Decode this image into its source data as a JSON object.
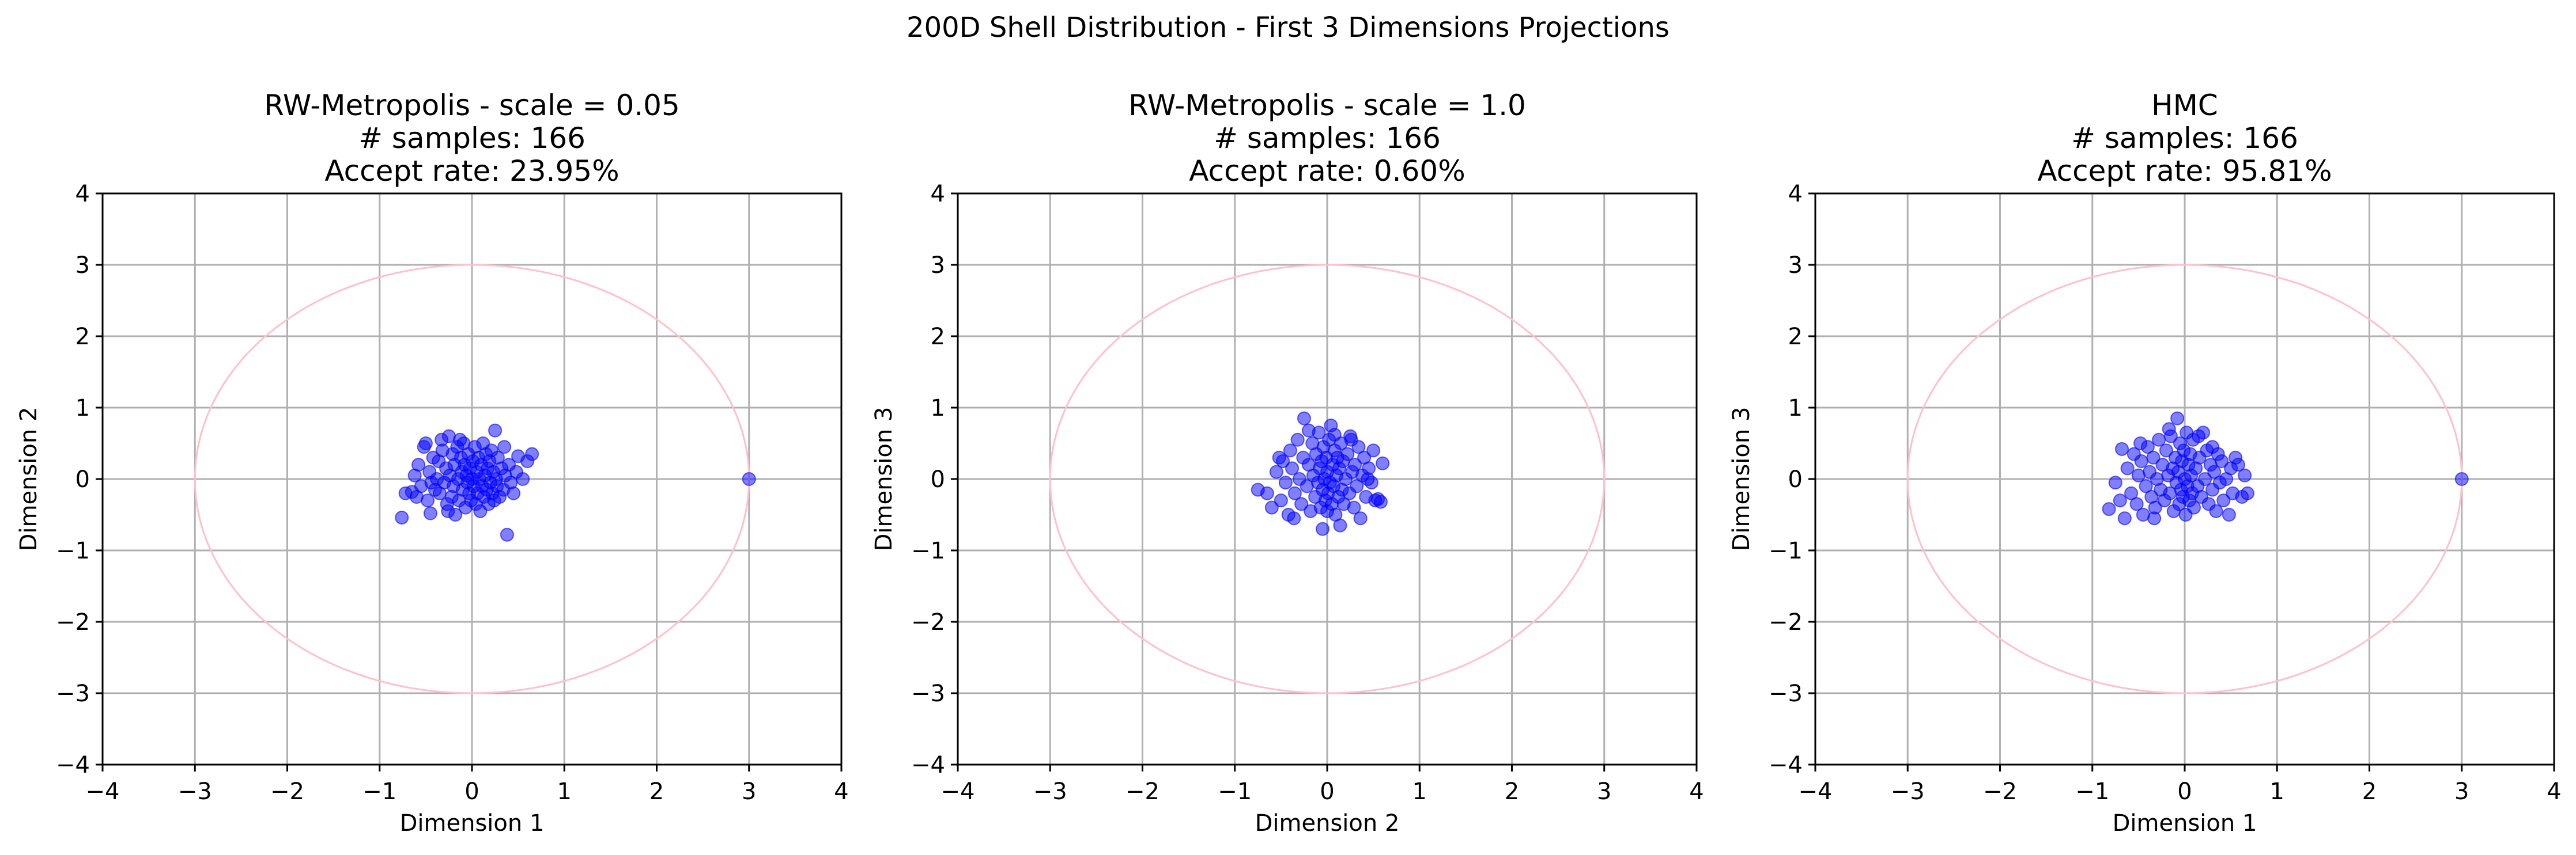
{
  "figure": {
    "suptitle": "200D Shell Distribution - First 3 Dimensions Projections"
  },
  "chart_data": [
    {
      "type": "scatter",
      "title_lines": [
        "RW-Metropolis - scale = 0.05",
        "# samples: 166",
        "Accept rate: 23.95%"
      ],
      "xlabel": "Dimension 1",
      "ylabel": "Dimension 2",
      "xlim": [
        -4,
        4
      ],
      "ylim": [
        -4,
        4
      ],
      "xticks": [
        -4,
        -3,
        -2,
        -1,
        0,
        1,
        2,
        3,
        4
      ],
      "yticks": [
        -4,
        -3,
        -2,
        -1,
        0,
        1,
        2,
        3,
        4
      ],
      "grid": true,
      "shell_radius": 3,
      "shell_color": "#ffc0cb",
      "point_color": "#0000ff",
      "points": [
        [
          -0.76,
          -0.54
        ],
        [
          -0.72,
          -0.2
        ],
        [
          -0.65,
          -0.18
        ],
        [
          -0.6,
          -0.25
        ],
        [
          -0.58,
          0.2
        ],
        [
          -0.55,
          -0.1
        ],
        [
          -0.52,
          0.45
        ],
        [
          -0.5,
          0.5
        ],
        [
          -0.48,
          -0.3
        ],
        [
          -0.46,
          0.1
        ],
        [
          -0.45,
          -0.48
        ],
        [
          -0.42,
          0.3
        ],
        [
          -0.4,
          -0.15
        ],
        [
          -0.38,
          0.0
        ],
        [
          -0.36,
          0.25
        ],
        [
          -0.35,
          -0.2
        ],
        [
          -0.33,
          0.55
        ],
        [
          -0.32,
          0.4
        ],
        [
          -0.3,
          -0.05
        ],
        [
          -0.28,
          0.15
        ],
        [
          -0.27,
          -0.35
        ],
        [
          -0.25,
          0.6
        ],
        [
          -0.24,
          0.05
        ],
        [
          -0.22,
          -0.25
        ],
        [
          -0.21,
          0.35
        ],
        [
          -0.2,
          -0.1
        ],
        [
          -0.19,
          0.2
        ],
        [
          -0.18,
          -0.5
        ],
        [
          -0.16,
          0.45
        ],
        [
          -0.15,
          0.0
        ],
        [
          -0.14,
          -0.3
        ],
        [
          -0.12,
          0.3
        ],
        [
          -0.11,
          0.1
        ],
        [
          -0.1,
          -0.15
        ],
        [
          -0.09,
          0.5
        ],
        [
          -0.08,
          0.2
        ],
        [
          -0.07,
          -0.4
        ],
        [
          -0.06,
          0.05
        ],
        [
          -0.05,
          -0.05
        ],
        [
          -0.04,
          0.35
        ],
        [
          -0.03,
          -0.2
        ],
        [
          -0.02,
          0.15
        ],
        [
          -0.01,
          -0.3
        ],
        [
          0.0,
          0.0
        ],
        [
          0.01,
          0.25
        ],
        [
          0.02,
          -0.1
        ],
        [
          0.03,
          0.45
        ],
        [
          0.04,
          -0.35
        ],
        [
          0.05,
          0.1
        ],
        [
          0.06,
          -0.2
        ],
        [
          0.07,
          0.3
        ],
        [
          0.08,
          0.0
        ],
        [
          0.09,
          -0.45
        ],
        [
          0.1,
          0.2
        ],
        [
          0.11,
          -0.1
        ],
        [
          0.12,
          0.5
        ],
        [
          0.13,
          -0.25
        ],
        [
          0.14,
          0.05
        ],
        [
          0.15,
          0.35
        ],
        [
          0.16,
          -0.15
        ],
        [
          0.17,
          0.15
        ],
        [
          0.18,
          -0.35
        ],
        [
          0.19,
          0.25
        ],
        [
          0.2,
          -0.05
        ],
        [
          0.21,
          0.4
        ],
        [
          0.22,
          -0.2
        ],
        [
          0.23,
          0.1
        ],
        [
          0.24,
          -0.3
        ],
        [
          0.25,
          0.68
        ],
        [
          0.26,
          0.0
        ],
        [
          0.27,
          -0.1
        ],
        [
          0.28,
          0.3
        ],
        [
          0.3,
          -0.25
        ],
        [
          0.32,
          0.15
        ],
        [
          0.34,
          -0.15
        ],
        [
          0.36,
          0.05
        ],
        [
          0.38,
          -0.78
        ],
        [
          0.4,
          0.2
        ],
        [
          0.42,
          -0.05
        ],
        [
          0.45,
          -0.2
        ],
        [
          0.48,
          0.1
        ],
        [
          0.5,
          0.32
        ],
        [
          0.55,
          0.0
        ],
        [
          0.6,
          0.25
        ],
        [
          0.65,
          0.35
        ],
        [
          -0.62,
          0.05
        ],
        [
          -0.44,
          -0.05
        ],
        [
          -0.26,
          -0.45
        ],
        [
          -0.13,
          0.55
        ],
        [
          0.35,
          0.45
        ],
        [
          3.0,
          0.0
        ]
      ]
    },
    {
      "type": "scatter",
      "title_lines": [
        "RW-Metropolis - scale = 1.0",
        "# samples: 166",
        "Accept rate: 0.60%"
      ],
      "xlabel": "Dimension 2",
      "ylabel": "Dimension 3",
      "xlim": [
        -4,
        4
      ],
      "ylim": [
        -4,
        4
      ],
      "xticks": [
        -4,
        -3,
        -2,
        -1,
        0,
        1,
        2,
        3,
        4
      ],
      "yticks": [
        -4,
        -3,
        -2,
        -1,
        0,
        1,
        2,
        3,
        4
      ],
      "grid": true,
      "shell_radius": 3,
      "shell_color": "#ffc0cb",
      "point_color": "#0000ff",
      "points": [
        [
          -0.75,
          -0.15
        ],
        [
          -0.6,
          -0.4
        ],
        [
          -0.55,
          0.1
        ],
        [
          -0.5,
          -0.3
        ],
        [
          -0.48,
          0.25
        ],
        [
          -0.45,
          -0.05
        ],
        [
          -0.42,
          -0.5
        ],
        [
          -0.4,
          0.4
        ],
        [
          -0.38,
          0.15
        ],
        [
          -0.35,
          -0.2
        ],
        [
          -0.32,
          0.55
        ],
        [
          -0.3,
          0.0
        ],
        [
          -0.28,
          -0.35
        ],
        [
          -0.26,
          0.3
        ],
        [
          -0.25,
          0.85
        ],
        [
          -0.22,
          -0.1
        ],
        [
          -0.2,
          0.2
        ],
        [
          -0.18,
          -0.45
        ],
        [
          -0.16,
          0.5
        ],
        [
          -0.15,
          0.05
        ],
        [
          -0.13,
          -0.25
        ],
        [
          -0.12,
          0.35
        ],
        [
          -0.1,
          -0.05
        ],
        [
          -0.09,
          0.65
        ],
        [
          -0.08,
          0.15
        ],
        [
          -0.07,
          -0.4
        ],
        [
          -0.06,
          0.25
        ],
        [
          -0.05,
          -0.15
        ],
        [
          -0.04,
          0.45
        ],
        [
          -0.03,
          0.0
        ],
        [
          -0.02,
          -0.3
        ],
        [
          -0.01,
          0.3
        ],
        [
          0.0,
          0.1
        ],
        [
          0.01,
          -0.2
        ],
        [
          0.02,
          0.55
        ],
        [
          0.03,
          -0.05
        ],
        [
          0.04,
          0.75
        ],
        [
          0.05,
          -0.35
        ],
        [
          0.06,
          0.2
        ],
        [
          0.07,
          -0.1
        ],
        [
          0.08,
          0.4
        ],
        [
          0.09,
          -0.5
        ],
        [
          0.1,
          0.05
        ],
        [
          0.11,
          0.3
        ],
        [
          0.12,
          -0.25
        ],
        [
          0.13,
          0.15
        ],
        [
          0.14,
          -0.65
        ],
        [
          0.15,
          0.5
        ],
        [
          0.16,
          -0.15
        ],
        [
          0.17,
          0.25
        ],
        [
          0.18,
          -0.35
        ],
        [
          0.2,
          0.0
        ],
        [
          0.22,
          0.35
        ],
        [
          0.24,
          -0.2
        ],
        [
          0.25,
          0.6
        ],
        [
          0.27,
          0.1
        ],
        [
          0.29,
          -0.4
        ],
        [
          0.3,
          0.2
        ],
        [
          0.32,
          -0.1
        ],
        [
          0.34,
          0.45
        ],
        [
          0.36,
          -0.55
        ],
        [
          0.38,
          0.05
        ],
        [
          0.4,
          0.3
        ],
        [
          0.42,
          -0.25
        ],
        [
          0.45,
          0.15
        ],
        [
          0.48,
          -0.05
        ],
        [
          0.5,
          0.4
        ],
        [
          0.52,
          -0.3
        ],
        [
          0.55,
          -0.28
        ],
        [
          0.58,
          -0.32
        ],
        [
          0.6,
          0.22
        ],
        [
          -0.65,
          -0.2
        ],
        [
          -0.52,
          0.3
        ],
        [
          -0.36,
          -0.55
        ],
        [
          -0.2,
          0.68
        ],
        [
          -0.05,
          -0.7
        ],
        [
          0.08,
          0.62
        ],
        [
          0.26,
          0.55
        ],
        [
          0.44,
          0.0
        ],
        [
          0.0,
          -0.45
        ]
      ]
    },
    {
      "type": "scatter",
      "title_lines": [
        "HMC",
        "# samples: 166",
        "Accept rate: 95.81%"
      ],
      "xlabel": "Dimension 1",
      "ylabel": "Dimension 3",
      "xlim": [
        -4,
        4
      ],
      "ylim": [
        -4,
        4
      ],
      "xticks": [
        -4,
        -3,
        -2,
        -1,
        0,
        1,
        2,
        3,
        4
      ],
      "yticks": [
        -4,
        -3,
        -2,
        -1,
        0,
        1,
        2,
        3,
        4
      ],
      "grid": true,
      "shell_radius": 3,
      "shell_color": "#ffc0cb",
      "point_color": "#0000ff",
      "points": [
        [
          -0.82,
          -0.42
        ],
        [
          -0.75,
          -0.05
        ],
        [
          -0.68,
          0.42
        ],
        [
          -0.65,
          -0.55
        ],
        [
          -0.62,
          0.15
        ],
        [
          -0.58,
          -0.2
        ],
        [
          -0.55,
          0.35
        ],
        [
          -0.52,
          -0.35
        ],
        [
          -0.5,
          0.05
        ],
        [
          -0.47,
          0.25
        ],
        [
          -0.45,
          -0.5
        ],
        [
          -0.42,
          -0.1
        ],
        [
          -0.4,
          0.45
        ],
        [
          -0.38,
          0.1
        ],
        [
          -0.36,
          -0.25
        ],
        [
          -0.34,
          0.3
        ],
        [
          -0.32,
          -0.4
        ],
        [
          -0.3,
          0.0
        ],
        [
          -0.28,
          0.55
        ],
        [
          -0.26,
          -0.15
        ],
        [
          -0.24,
          0.2
        ],
        [
          -0.22,
          -0.3
        ],
        [
          -0.2,
          0.4
        ],
        [
          -0.18,
          0.05
        ],
        [
          -0.16,
          -0.2
        ],
        [
          -0.15,
          0.6
        ],
        [
          -0.13,
          0.15
        ],
        [
          -0.12,
          -0.45
        ],
        [
          -0.1,
          0.3
        ],
        [
          -0.09,
          -0.05
        ],
        [
          -0.08,
          0.85
        ],
        [
          -0.07,
          0.1
        ],
        [
          -0.06,
          -0.35
        ],
        [
          -0.05,
          0.5
        ],
        [
          -0.04,
          -0.15
        ],
        [
          -0.03,
          0.25
        ],
        [
          -0.02,
          -0.25
        ],
        [
          -0.01,
          0.4
        ],
        [
          0.0,
          0.0
        ],
        [
          0.01,
          -0.5
        ],
        [
          0.02,
          0.65
        ],
        [
          0.03,
          -0.1
        ],
        [
          0.04,
          0.2
        ],
        [
          0.05,
          -0.3
        ],
        [
          0.06,
          0.35
        ],
        [
          0.07,
          0.05
        ],
        [
          0.08,
          -0.2
        ],
        [
          0.09,
          0.55
        ],
        [
          0.1,
          -0.4
        ],
        [
          0.12,
          0.15
        ],
        [
          0.14,
          -0.1
        ],
        [
          0.16,
          0.3
        ],
        [
          0.18,
          -0.25
        ],
        [
          0.2,
          0.65
        ],
        [
          0.22,
          0.0
        ],
        [
          0.24,
          0.4
        ],
        [
          0.26,
          -0.35
        ],
        [
          0.28,
          0.2
        ],
        [
          0.3,
          -0.15
        ],
        [
          0.32,
          0.1
        ],
        [
          0.34,
          -0.45
        ],
        [
          0.36,
          0.35
        ],
        [
          0.38,
          -0.05
        ],
        [
          0.4,
          0.25
        ],
        [
          0.42,
          -0.3
        ],
        [
          0.45,
          0.0
        ],
        [
          0.48,
          -0.5
        ],
        [
          0.5,
          0.15
        ],
        [
          0.52,
          -0.2
        ],
        [
          0.55,
          0.3
        ],
        [
          0.58,
          0.2
        ],
        [
          0.62,
          -0.25
        ],
        [
          0.65,
          0.05
        ],
        [
          0.68,
          -0.2
        ],
        [
          -0.7,
          -0.3
        ],
        [
          -0.48,
          0.5
        ],
        [
          -0.33,
          -0.55
        ],
        [
          -0.17,
          0.7
        ],
        [
          0.15,
          0.6
        ],
        [
          0.3,
          0.45
        ],
        [
          3.0,
          0.0
        ]
      ]
    }
  ]
}
